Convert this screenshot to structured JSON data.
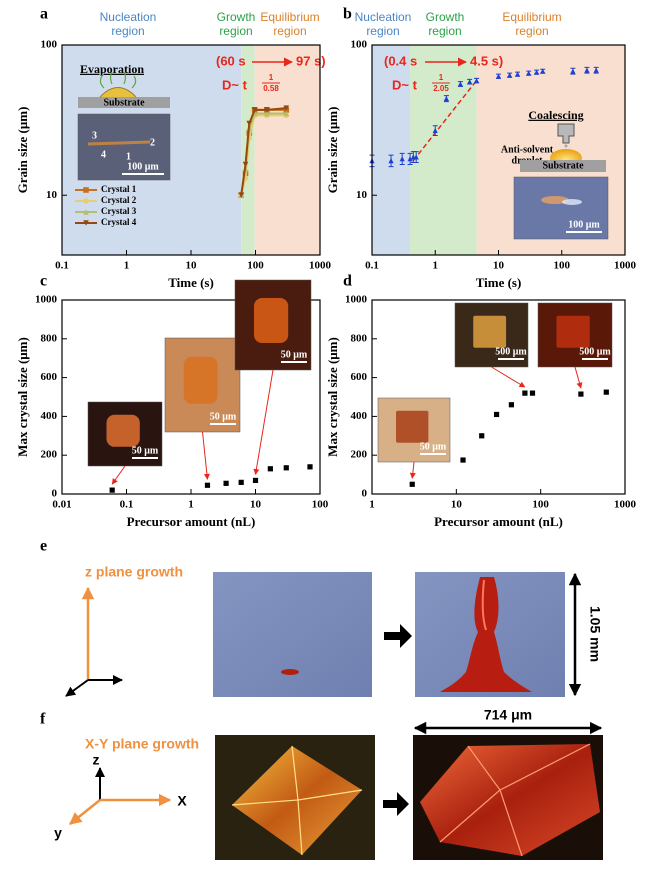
{
  "chart_data": [
    {
      "panel": "a",
      "type": "line",
      "xscale": "log",
      "yscale": "log",
      "xlim": [
        0.1,
        1000
      ],
      "ylim": [
        4,
        100
      ],
      "xticks": [
        0.1,
        1,
        10,
        100,
        1000
      ],
      "yticks": [
        10,
        100
      ],
      "xlabel": "Time (s)",
      "ylabel": "Grain size (μm)",
      "regions": [
        {
          "label_lines": [
            "Nucleation",
            "region"
          ],
          "start": 0.1,
          "end": 60,
          "color": "#cfdcee",
          "text_color": "#4a86c5"
        },
        {
          "label_lines": [
            "Growth",
            "region"
          ],
          "start": 60,
          "end": 97,
          "color": "#d3ebcb",
          "text_color": "#2ca14a"
        },
        {
          "label_lines": [
            "Equilibrium",
            "region"
          ],
          "start": 97,
          "end": 1000,
          "color": "#f9dfcf",
          "text_color": "#d9822b"
        }
      ],
      "annotation": {
        "start": "(60 s",
        "end": "97 s)",
        "fit": "D~ t",
        "fit_exp_num": "1",
        "fit_exp_den": "0.58"
      },
      "x": [
        60,
        70,
        80,
        97,
        150,
        300
      ],
      "series": [
        {
          "name": "Crystal 1",
          "color": "#c8701f",
          "marker": "square",
          "values": [
            10,
            14,
            26,
            37,
            37,
            37
          ]
        },
        {
          "name": "Crystal 2",
          "color": "#e6cf72",
          "marker": "circle",
          "values": [
            10,
            13,
            24,
            34,
            34,
            34
          ]
        },
        {
          "name": "Crystal 3",
          "color": "#b5bd6e",
          "marker": "triangle",
          "values": [
            10,
            15,
            28,
            35,
            35,
            35
          ]
        },
        {
          "name": "Crystal 4",
          "color": "#96480f",
          "marker": "triangle-down",
          "values": [
            10,
            16,
            30,
            37,
            37,
            38
          ]
        }
      ],
      "legend": "lower left",
      "inset": {
        "title": "Evaporation",
        "substrate": "Substrate",
        "crystal_labels": [
          "3",
          "2",
          "4",
          "1"
        ],
        "scale_bar": "100 μm"
      }
    },
    {
      "panel": "b",
      "type": "scatter",
      "xscale": "log",
      "yscale": "log",
      "xlim": [
        0.1,
        1000
      ],
      "ylim": [
        4,
        100
      ],
      "xticks": [
        0.1,
        1,
        10,
        100,
        1000
      ],
      "yticks": [
        10,
        100
      ],
      "xlabel": "Time (s)",
      "ylabel": "Grain size (μm)",
      "regions": [
        {
          "label_lines": [
            "Nucleation",
            "region"
          ],
          "start": 0.1,
          "end": 0.4,
          "color": "#cfdcee",
          "text_color": "#4a86c5"
        },
        {
          "label_lines": [
            "Growth",
            "region"
          ],
          "start": 0.4,
          "end": 4.5,
          "color": "#d3ebcb",
          "text_color": "#2ca14a"
        },
        {
          "label_lines": [
            "Equilibrium",
            "region"
          ],
          "start": 4.5,
          "end": 1000,
          "color": "#f9dfcf",
          "text_color": "#d9822b"
        }
      ],
      "annotation": {
        "start": "(0.4 s",
        "end": "4.5 s)",
        "fit": "D~ t",
        "fit_exp_num": "1",
        "fit_exp_den": "2.05"
      },
      "fit_line": {
        "x": [
          0.45,
          4.5
        ],
        "values": [
          17,
          58
        ],
        "color": "#e8261c"
      },
      "x": [
        0.1,
        0.2,
        0.3,
        0.4,
        0.45,
        0.5,
        1,
        1.5,
        2.5,
        3.5,
        4.5,
        10,
        15,
        20,
        30,
        40,
        50,
        150,
        250,
        350
      ],
      "series": [
        {
          "color": "#1f3fd0",
          "marker": "triangle",
          "values": [
            17,
            17,
            17.5,
            17.5,
            18,
            18,
            27,
            44,
            55,
            57,
            58,
            62,
            63,
            64,
            65,
            66,
            67,
            67,
            68,
            68
          ],
          "errors": [
            1.5,
            1.5,
            1.5,
            1.5,
            1.5,
            1.5,
            2,
            2,
            2,
            2,
            2,
            2,
            2,
            2,
            2,
            2,
            2,
            3,
            3,
            3
          ]
        }
      ],
      "inset": {
        "title": "Coalescing",
        "droplet_lines": [
          "Anti-solvent",
          "droplet"
        ],
        "substrate": "Substrate",
        "scale_bar": "100 μm"
      }
    },
    {
      "panel": "c",
      "type": "scatter",
      "xscale": "log",
      "xlim": [
        0.01,
        100
      ],
      "ylim": [
        0,
        1000
      ],
      "xticks": [
        0.01,
        0.1,
        1,
        10,
        100
      ],
      "yticks": [
        0,
        200,
        400,
        600,
        800,
        1000
      ],
      "xlabel": "Precursor amount (nL)",
      "ylabel": "Max crystal size (μm)",
      "x": [
        0.06,
        1.8,
        3.5,
        6,
        10,
        17,
        30,
        70
      ],
      "values": [
        20,
        45,
        55,
        60,
        70,
        130,
        135,
        140
      ],
      "color": "#000000",
      "insets": [
        {
          "scale_bar": "50 μm"
        },
        {
          "scale_bar": "50 μm"
        },
        {
          "scale_bar": "50 μm"
        }
      ]
    },
    {
      "panel": "d",
      "type": "scatter",
      "xscale": "log",
      "xlim": [
        1,
        1000
      ],
      "ylim": [
        0,
        1000
      ],
      "xticks": [
        1,
        10,
        100,
        1000
      ],
      "yticks": [
        0,
        200,
        400,
        600,
        800,
        1000
      ],
      "xlabel": "Precursor amount (nL)",
      "ylabel": "Max crystal size (μm)",
      "x": [
        3,
        12,
        20,
        30,
        45,
        65,
        80,
        300,
        600
      ],
      "values": [
        50,
        175,
        300,
        410,
        460,
        520,
        520,
        515,
        525
      ],
      "color": "#000000",
      "insets": [
        {
          "scale_bar": "50 μm"
        },
        {
          "scale_bar": "500 μm"
        },
        {
          "scale_bar": "500 μm"
        }
      ]
    }
  ],
  "panel_e": {
    "label": "e",
    "title": "z plane growth",
    "height_label": "1.05 mm"
  },
  "panel_f": {
    "label": "f",
    "title": "X-Y plane growth",
    "axis_labels": {
      "z": "z",
      "x": "X",
      "y": "y"
    },
    "width_label": "714 μm"
  }
}
